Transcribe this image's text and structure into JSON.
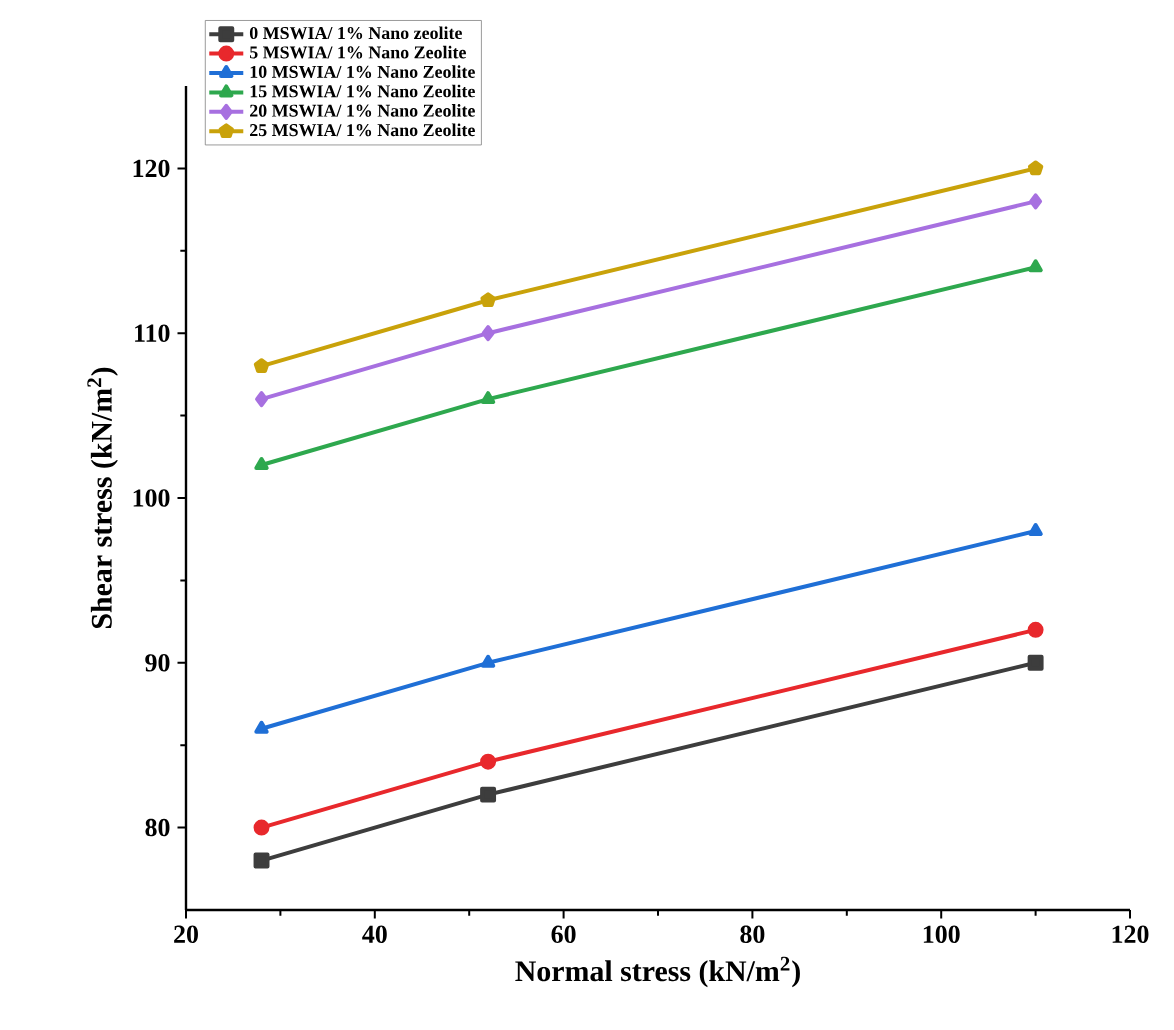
{
  "chart_data": {
    "type": "line",
    "xlabel": "Normal stress (kN/m$^{2}$)",
    "ylabel": "Shear stress (kN/m$^{2}$)",
    "x": [
      28,
      52,
      110
    ],
    "xlim": [
      20,
      120
    ],
    "xticks": [
      20,
      40,
      60,
      80,
      100,
      120
    ],
    "ylim": [
      75,
      125
    ],
    "yticks": [
      80,
      90,
      100,
      110,
      120
    ],
    "legend": "top left",
    "grid": false,
    "series": [
      {
        "name": "0 MSWIA/ 1% Nano zeolite",
        "color": "#3d3d3d",
        "marker": "square",
        "values": [
          78,
          82,
          90
        ]
      },
      {
        "name": "5 MSWIA/ 1% Nano Zeolite",
        "color": "#e8282c",
        "marker": "circle",
        "values": [
          80,
          84,
          92
        ]
      },
      {
        "name": "10 MSWIA/ 1% Nano Zeolite",
        "color": "#1f6fd6",
        "marker": "triangle",
        "values": [
          86,
          90,
          98
        ]
      },
      {
        "name": "15 MSWIA/ 1% Nano Zeolite",
        "color": "#2ea84e",
        "marker": "triangle",
        "values": [
          102,
          106,
          114
        ]
      },
      {
        "name": "20 MSWIA/ 1% Nano Zeolite",
        "color": "#a770e0",
        "marker": "diamond",
        "values": [
          106,
          110,
          118
        ]
      },
      {
        "name": "25 MSWIA/ 1% Nano Zeolite",
        "color": "#c9a20a",
        "marker": "star",
        "values": [
          108,
          112,
          120
        ]
      }
    ]
  }
}
